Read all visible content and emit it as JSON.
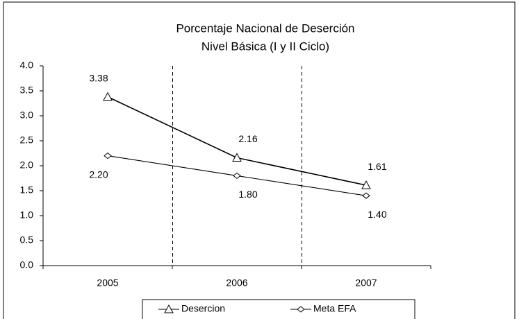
{
  "chart_data": {
    "type": "line",
    "title": [
      "Porcentaje Nacional de Deserción",
      "Nivel Básica (I y II Ciclo)"
    ],
    "categories": [
      "2005",
      "2006",
      "2007"
    ],
    "series": [
      {
        "name": "Desercion",
        "color": "#000000",
        "marker": "triangle",
        "values": [
          3.38,
          2.16,
          1.61
        ],
        "value_labels": [
          "3.38",
          "2.16",
          "1.61"
        ]
      },
      {
        "name": "Meta EFA",
        "color": "#000000",
        "marker": "diamond",
        "values": [
          2.2,
          1.8,
          1.4
        ],
        "value_labels": [
          "2.20",
          "1.80",
          "1.40"
        ]
      }
    ],
    "ylim": [
      0,
      4
    ],
    "yticks": [
      {
        "value": 0,
        "label": "0.0"
      },
      {
        "value": 0.5,
        "label": "0.5"
      },
      {
        "value": 1,
        "label": "1.0"
      },
      {
        "value": 1.5,
        "label": "1.5"
      },
      {
        "value": 2,
        "label": "2.0"
      },
      {
        "value": 2.5,
        "label": "2.5"
      },
      {
        "value": 3,
        "label": "3.0"
      },
      {
        "value": 3.5,
        "label": "3.5"
      },
      {
        "value": 4,
        "label": "4.0"
      }
    ],
    "legend": "bottom"
  }
}
